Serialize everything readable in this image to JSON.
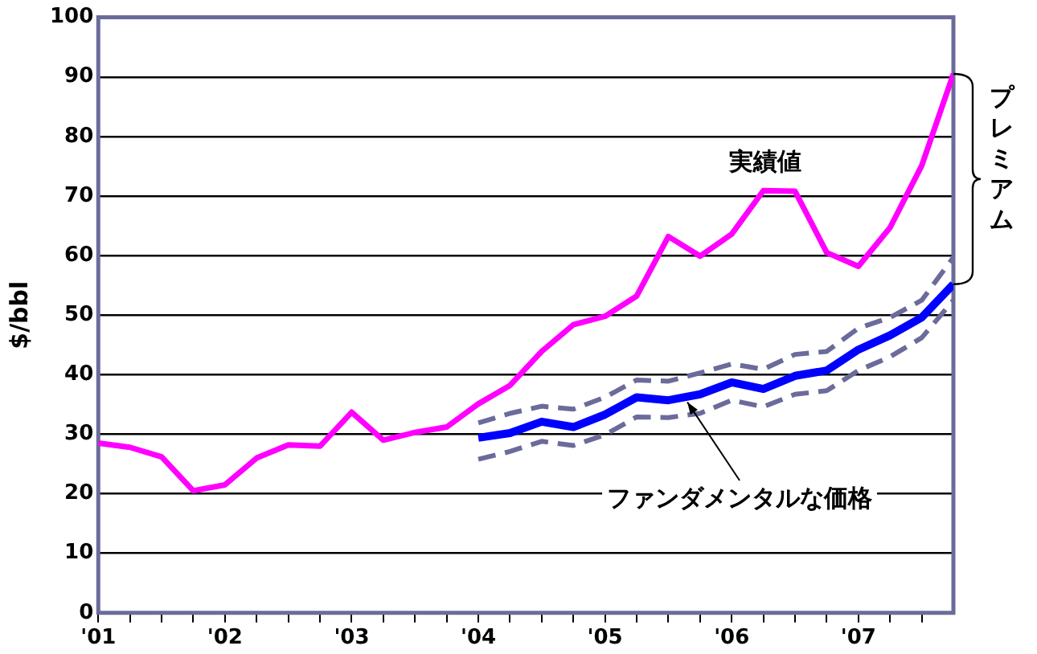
{
  "chart_data": {
    "type": "line",
    "ylabel": "$/bbl",
    "x": [
      2001,
      2001.25,
      2001.5,
      2001.75,
      2002,
      2002.25,
      2002.5,
      2002.75,
      2003,
      2003.25,
      2003.5,
      2003.75,
      2004,
      2004.25,
      2004.5,
      2004.75,
      2005,
      2005.25,
      2005.5,
      2005.75,
      2006,
      2006.25,
      2006.5,
      2006.75,
      2007,
      2007.25,
      2007.5,
      2007.75
    ],
    "series": [
      {
        "color": "#ff00ff",
        "values": [
          28.5,
          27.8,
          26.2,
          20.5,
          21.5,
          26,
          28.2,
          28,
          33.7,
          29,
          30.3,
          31.2,
          35.1,
          38.2,
          43.9,
          48.4,
          49.8,
          53.2,
          63.2,
          59.9,
          63.6,
          70.9,
          70.8,
          60.5,
          58.2,
          64.7,
          75.1,
          90.5
        ]
      },
      {
        "color": "#0000ff",
        "values": [
          null,
          null,
          null,
          null,
          null,
          null,
          null,
          null,
          null,
          null,
          null,
          null,
          29.4,
          30.2,
          32.1,
          31.2,
          33.3,
          36.2,
          35.7,
          36.7,
          38.7,
          37.6,
          39.8,
          40.7,
          44.2,
          46.6,
          49.6,
          55.2
        ]
      },
      {
        "color": "#6b6b9b",
        "line_style": "dashed",
        "values": [
          null,
          null,
          null,
          null,
          null,
          null,
          null,
          null,
          null,
          null,
          null,
          null,
          31.9,
          33.5,
          34.7,
          34.2,
          36.2,
          39.1,
          38.9,
          40.3,
          41.8,
          40.9,
          43.4,
          43.9,
          47.8,
          49.6,
          52.5,
          59.7
        ]
      },
      {
        "color": "#6b6b9b",
        "line_style": "dashed",
        "values": [
          null,
          null,
          null,
          null,
          null,
          null,
          null,
          null,
          null,
          null,
          null,
          null,
          25.8,
          27.1,
          28.8,
          28.1,
          29.9,
          32.9,
          32.8,
          33.5,
          35.7,
          34.6,
          36.7,
          37.3,
          40.7,
          43,
          46.2,
          52.5
        ]
      }
    ],
    "xlim": [
      2001,
      2007.75
    ],
    "xticks": [
      {
        "value": 2001,
        "label": "'01"
      },
      {
        "value": 2001.25,
        "label": null
      },
      {
        "value": 2001.5,
        "label": null
      },
      {
        "value": 2001.75,
        "label": null
      },
      {
        "value": 2002,
        "label": "'02"
      },
      {
        "value": 2002.25,
        "label": null
      },
      {
        "value": 2002.5,
        "label": null
      },
      {
        "value": 2002.75,
        "label": null
      },
      {
        "value": 2003,
        "label": "'03"
      },
      {
        "value": 2003.25,
        "label": null
      },
      {
        "value": 2003.5,
        "label": null
      },
      {
        "value": 2003.75,
        "label": null
      },
      {
        "value": 2004,
        "label": "'04"
      },
      {
        "value": 2004.25,
        "label": null
      },
      {
        "value": 2004.5,
        "label": null
      },
      {
        "value": 2004.75,
        "label": null
      },
      {
        "value": 2005,
        "label": "'05"
      },
      {
        "value": 2005.25,
        "label": null
      },
      {
        "value": 2005.5,
        "label": null
      },
      {
        "value": 2005.75,
        "label": null
      },
      {
        "value": 2006,
        "label": "'06"
      },
      {
        "value": 2006.25,
        "label": null
      },
      {
        "value": 2006.5,
        "label": null
      },
      {
        "value": 2006.75,
        "label": null
      },
      {
        "value": 2007,
        "label": "'07"
      },
      {
        "value": 2007.25,
        "label": null
      },
      {
        "value": 2007.5,
        "label": null
      }
    ],
    "ylim": [
      0,
      100
    ],
    "yticks": [
      0,
      10,
      20,
      30,
      40,
      50,
      60,
      70,
      80,
      90,
      100
    ],
    "grid": "y",
    "legend": false,
    "marker": "none",
    "line_style": "solid",
    "annotations": [
      "実績値",
      {
        "text": "ファンダメンタルな価格",
        "x": 2005.65,
        "y": 36.2
      },
      "プレミアム"
    ]
  }
}
